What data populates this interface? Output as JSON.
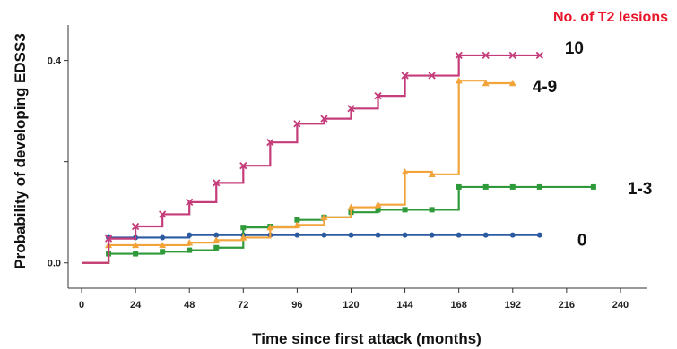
{
  "chart_data": {
    "type": "line",
    "step": true,
    "xlabel": "Time since first attack (months)",
    "ylabel": "Probability of developing EDSS3",
    "legend_title": "No. of T2 lesions",
    "legend_title_color": "#e8142a",
    "xlim": [
      -6,
      252
    ],
    "ylim": [
      -0.05,
      0.47
    ],
    "xticks": [
      0,
      24,
      48,
      72,
      96,
      120,
      144,
      168,
      192,
      216,
      240
    ],
    "yticks": [
      0.0,
      0.2,
      0.4
    ],
    "ytick_labels": [
      "0.0",
      "",
      "0.4"
    ],
    "start_point": [
      0,
      0.0
    ],
    "series": [
      {
        "name": "10",
        "color": "#c43c7a",
        "marker": "x",
        "x": [
          12,
          24,
          36,
          48,
          60,
          72,
          84,
          96,
          108,
          120,
          132,
          144,
          156,
          168,
          180,
          192,
          204
        ],
        "y": [
          0.048,
          0.072,
          0.096,
          0.12,
          0.158,
          0.192,
          0.238,
          0.275,
          0.285,
          0.305,
          0.33,
          0.37,
          0.37,
          0.41,
          0.41,
          0.41,
          0.41
        ]
      },
      {
        "name": "4-9",
        "color": "#f2a33a",
        "marker": "triangle",
        "x": [
          12,
          24,
          36,
          48,
          60,
          72,
          84,
          96,
          108,
          120,
          132,
          144,
          156,
          168,
          180,
          192
        ],
        "y": [
          0.035,
          0.035,
          0.035,
          0.04,
          0.045,
          0.05,
          0.07,
          0.075,
          0.09,
          0.11,
          0.115,
          0.18,
          0.175,
          0.36,
          0.355,
          0.355
        ]
      },
      {
        "name": "1-3",
        "color": "#2f9a3a",
        "marker": "square",
        "x": [
          12,
          24,
          36,
          48,
          60,
          72,
          84,
          96,
          108,
          120,
          132,
          144,
          156,
          168,
          180,
          192,
          204,
          228
        ],
        "y": [
          0.018,
          0.018,
          0.022,
          0.025,
          0.03,
          0.07,
          0.072,
          0.085,
          0.09,
          0.1,
          0.105,
          0.105,
          0.105,
          0.15,
          0.15,
          0.15,
          0.15,
          0.15
        ]
      },
      {
        "name": "0",
        "color": "#2c5aa0",
        "marker": "circle",
        "x": [
          12,
          24,
          36,
          48,
          60,
          72,
          84,
          96,
          108,
          120,
          132,
          144,
          156,
          168,
          180,
          192,
          204
        ],
        "y": [
          0.05,
          0.05,
          0.05,
          0.055,
          0.055,
          0.055,
          0.055,
          0.055,
          0.055,
          0.055,
          0.055,
          0.055,
          0.055,
          0.055,
          0.055,
          0.055,
          0.055
        ]
      }
    ]
  }
}
